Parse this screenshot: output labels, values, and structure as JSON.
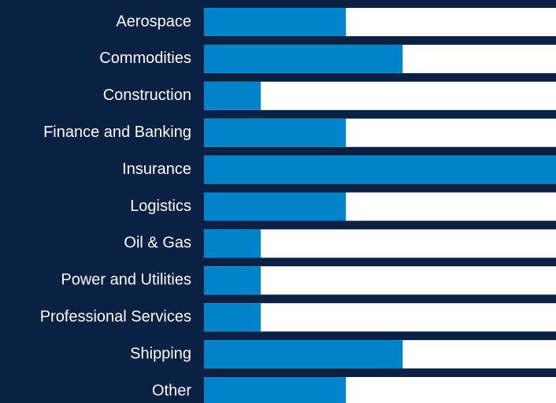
{
  "chart_data": {
    "type": "bar",
    "orientation": "horizontal",
    "categories": [
      "Aerospace",
      "Commodities",
      "Construction",
      "Finance and Banking",
      "Insurance",
      "Logistics",
      "Oil & Gas",
      "Power and Utilities",
      "Professional Services",
      "Shipping",
      "Other"
    ],
    "values": [
      2.5,
      3.5,
      1,
      2.5,
      6.2,
      2.5,
      1,
      1,
      1,
      3.5,
      2.5
    ],
    "color": "#0083c9",
    "xlim": [
      0,
      6.2
    ]
  }
}
